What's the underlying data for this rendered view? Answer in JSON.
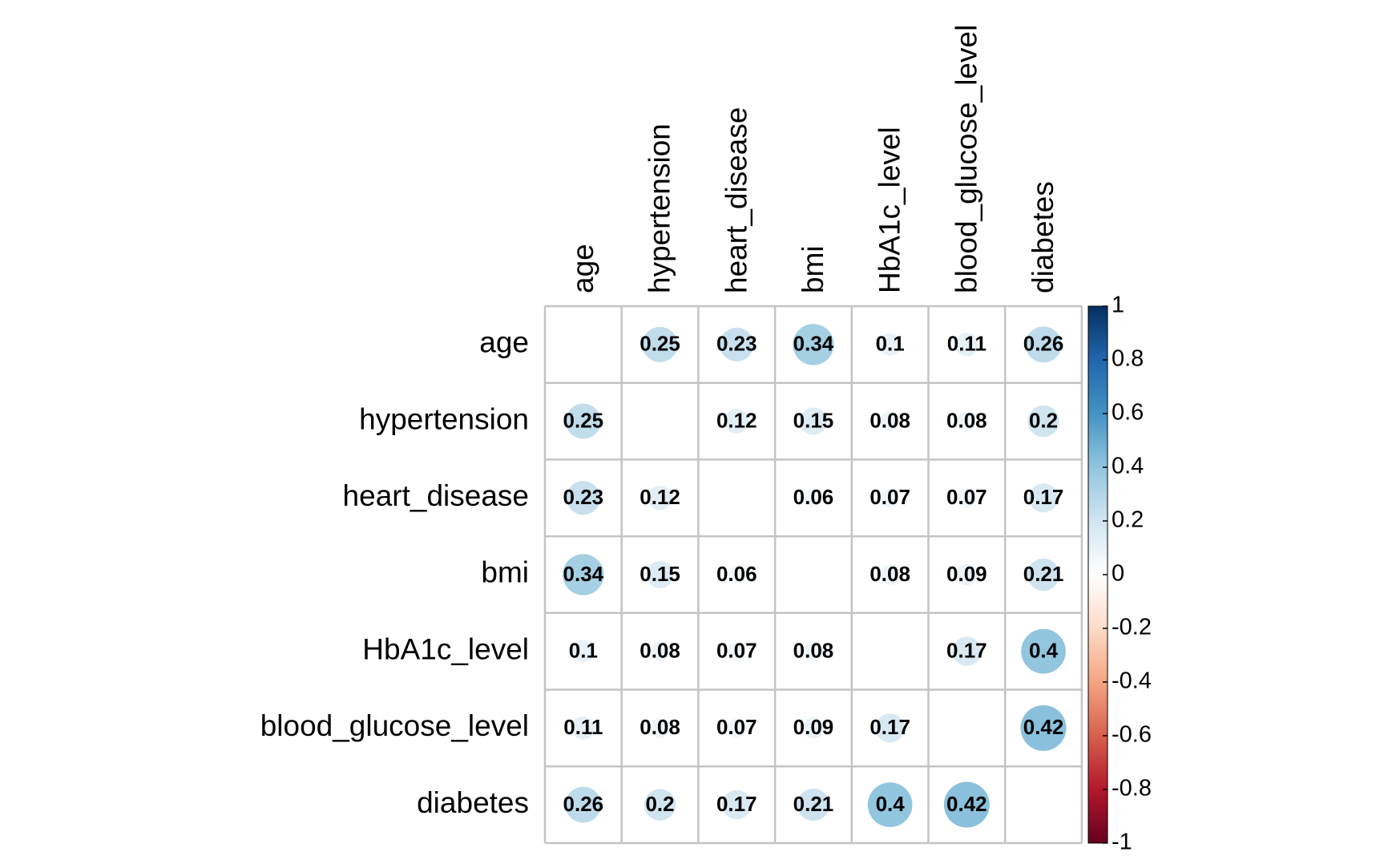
{
  "chart_data": {
    "type": "heatmap",
    "variables": [
      "age",
      "hypertension",
      "heart_disease",
      "bmi",
      "HbA1c_level",
      "blood_glucose_level",
      "diabetes"
    ],
    "matrix": [
      [
        null,
        0.25,
        0.23,
        0.34,
        0.1,
        0.11,
        0.26
      ],
      [
        0.25,
        null,
        0.12,
        0.15,
        0.08,
        0.08,
        0.2
      ],
      [
        0.23,
        0.12,
        null,
        0.06,
        0.07,
        0.07,
        0.17
      ],
      [
        0.34,
        0.15,
        0.06,
        null,
        0.08,
        0.09,
        0.21
      ],
      [
        0.1,
        0.08,
        0.07,
        0.08,
        null,
        0.17,
        0.4
      ],
      [
        0.11,
        0.08,
        0.07,
        0.09,
        0.17,
        null,
        0.42
      ],
      [
        0.26,
        0.2,
        0.17,
        0.21,
        0.4,
        0.42,
        null
      ]
    ],
    "value_labels": [
      [
        "",
        "0.25",
        "0.23",
        "0.34",
        "0.1",
        "0.11",
        "0.26"
      ],
      [
        "0.25",
        "",
        "0.12",
        "0.15",
        "0.08",
        "0.08",
        "0.2"
      ],
      [
        "0.23",
        "0.12",
        "",
        "0.06",
        "0.07",
        "0.07",
        "0.17"
      ],
      [
        "0.34",
        "0.15",
        "0.06",
        "",
        "0.08",
        "0.09",
        "0.21"
      ],
      [
        "0.1",
        "0.08",
        "0.07",
        "0.08",
        "",
        "0.17",
        "0.4"
      ],
      [
        "0.11",
        "0.08",
        "0.07",
        "0.09",
        "0.17",
        "",
        "0.42"
      ],
      [
        "0.26",
        "0.2",
        "0.17",
        "0.21",
        "0.4",
        "0.42",
        ""
      ]
    ],
    "marker": "circle",
    "diagonal_shown": false,
    "color_scale": {
      "range": [
        -1,
        1
      ],
      "ticks": [
        "1",
        "0.8",
        "0.6",
        "0.4",
        "0.2",
        "0",
        "-0.2",
        "-0.4",
        "-0.6",
        "-0.8",
        "-1"
      ],
      "stops": [
        "#67001f",
        "#b2182b",
        "#d6604d",
        "#f4a582",
        "#fddbc7",
        "#ffffff",
        "#d1e5f0",
        "#92c5de",
        "#4393c3",
        "#2166ac",
        "#053061"
      ],
      "position": "right"
    },
    "colors": {
      "grid": "#c4c4c4",
      "text": "#000000"
    }
  }
}
